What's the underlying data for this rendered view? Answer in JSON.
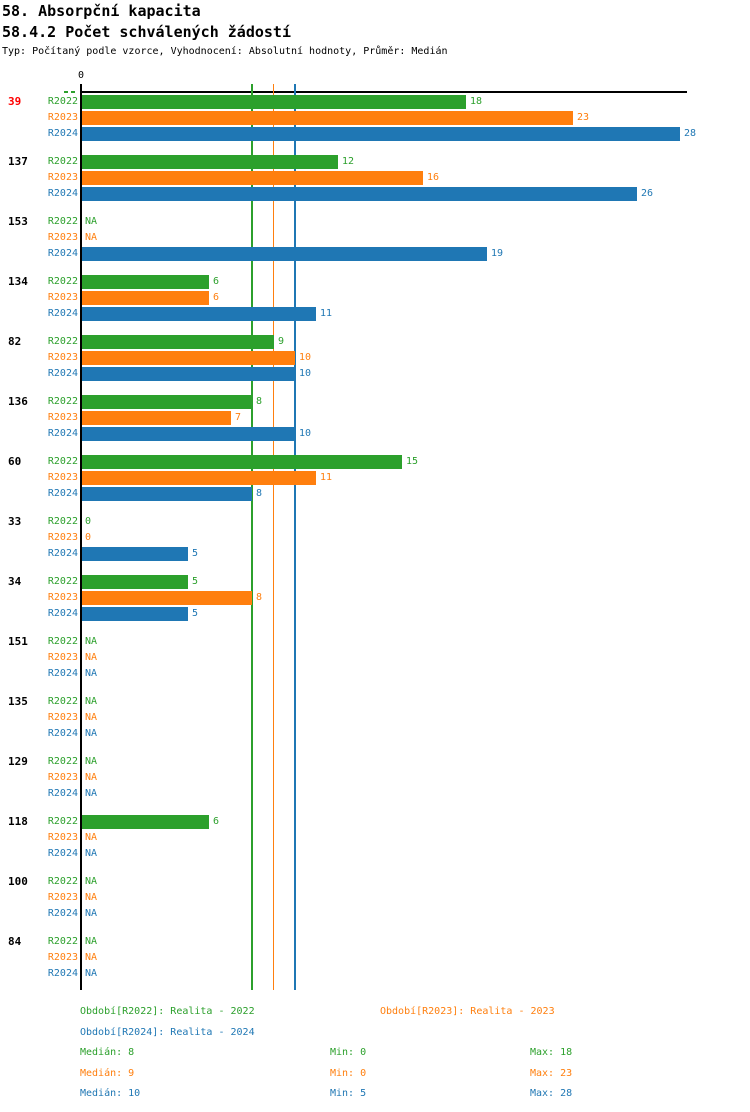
{
  "colors": {
    "green": "#2ca02c",
    "orange": "#ff7f0e",
    "blue": "#1f77b4",
    "red": "#ff0000",
    "black": "#000000"
  },
  "header": {
    "title": "58. Absorpční kapacita",
    "subtitle": "58.4.2 Počet schválených žádostí",
    "meta": "Typ: Počítaný podle vzorce, Vyhodnocení: Absolutní hodnoty, Průměr: Medián"
  },
  "chart_data": {
    "type": "bar",
    "orientation": "horizontal",
    "x_axis": {
      "origin_tick_label": "0",
      "min": 0,
      "drawn_max": 28.3,
      "grid": false
    },
    "na_text": "NA",
    "series": [
      {
        "key": "R2022",
        "label": "R2022",
        "color_key": "green",
        "median": 8,
        "min": 0,
        "max": 18
      },
      {
        "key": "R2023",
        "label": "R2023",
        "color_key": "orange",
        "median": 9,
        "min": 0,
        "max": 23
      },
      {
        "key": "R2024",
        "label": "R2024",
        "color_key": "blue",
        "median": 10,
        "min": 5,
        "max": 28
      }
    ],
    "median_lines": [
      {
        "series": "R2022",
        "value": 8,
        "color_key": "green"
      },
      {
        "series": "R2023",
        "value": 9,
        "color_key": "orange"
      },
      {
        "series": "R2024",
        "value": 10,
        "color_key": "blue"
      }
    ],
    "groups": [
      {
        "id": "39",
        "highlight": true,
        "values": [
          18,
          23,
          28
        ]
      },
      {
        "id": "137",
        "highlight": false,
        "values": [
          12,
          16,
          26
        ]
      },
      {
        "id": "153",
        "highlight": false,
        "values": [
          null,
          null,
          19
        ]
      },
      {
        "id": "134",
        "highlight": false,
        "values": [
          6,
          6,
          11
        ]
      },
      {
        "id": "82",
        "highlight": false,
        "values": [
          9,
          10,
          10
        ]
      },
      {
        "id": "136",
        "highlight": false,
        "values": [
          8,
          7,
          10
        ]
      },
      {
        "id": "60",
        "highlight": false,
        "values": [
          15,
          11,
          8
        ]
      },
      {
        "id": "33",
        "highlight": false,
        "values": [
          0,
          0,
          5
        ]
      },
      {
        "id": "34",
        "highlight": false,
        "values": [
          5,
          8,
          5
        ]
      },
      {
        "id": "151",
        "highlight": false,
        "values": [
          null,
          null,
          null
        ]
      },
      {
        "id": "135",
        "highlight": false,
        "values": [
          null,
          null,
          null
        ]
      },
      {
        "id": "129",
        "highlight": false,
        "values": [
          null,
          null,
          null
        ]
      },
      {
        "id": "118",
        "highlight": false,
        "values": [
          6,
          null,
          null
        ]
      },
      {
        "id": "100",
        "highlight": false,
        "values": [
          null,
          null,
          null
        ]
      },
      {
        "id": "84",
        "highlight": false,
        "values": [
          null,
          null,
          null
        ]
      }
    ]
  },
  "legend": {
    "items": [
      {
        "text": "Období[R2022]: Realita - 2022",
        "color_key": "green"
      },
      {
        "text": "Období[R2023]: Realita - 2023",
        "color_key": "orange"
      },
      {
        "text": "Období[R2024]: Realita - 2024",
        "color_key": "blue"
      }
    ]
  },
  "footer_stats": {
    "median_label": "Medián",
    "min_label": "Min",
    "max_label": "Max"
  }
}
